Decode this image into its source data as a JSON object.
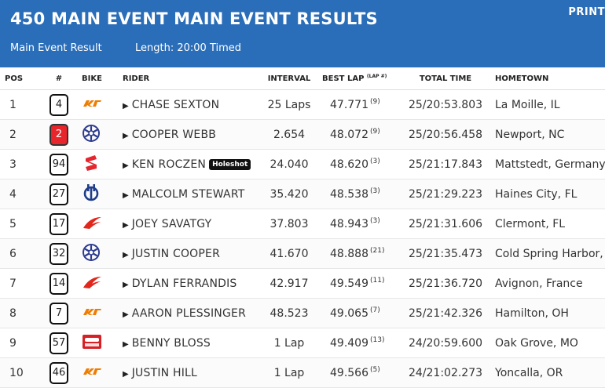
{
  "header": {
    "title": "450 MAIN EVENT MAIN EVENT RESULTS",
    "print_label": "PRINT",
    "subtitle_left": "Main Event Result",
    "subtitle_right": "Length: 20:00 Timed",
    "bg_color": "#2a6db8"
  },
  "columns": {
    "pos": "POS",
    "num": "#",
    "bike": "BIKE",
    "rider": "RIDER",
    "interval": "INTERVAL",
    "best_lap": "BEST LAP",
    "best_lap_sup": "(LAP #)",
    "total_time": "TOTAL TIME",
    "hometown": "HOMETOWN"
  },
  "rows": [
    {
      "pos": "1",
      "num": "4",
      "bike": "ktm",
      "bike_icon": "ktm-logo-icon",
      "rider": "CHASE SEXTON",
      "badge": "",
      "interval": "25 Laps",
      "best_lap": "47.771",
      "lap_no": "(9)",
      "total": "25/20:53.803",
      "hometown": "La Moille, IL"
    },
    {
      "pos": "2",
      "num": "2",
      "num_red": true,
      "bike": "yamaha",
      "bike_icon": "yamaha-logo-icon",
      "rider": "COOPER WEBB",
      "badge": "",
      "interval": "2.654",
      "best_lap": "48.072",
      "lap_no": "(9)",
      "total": "25/20:56.458",
      "hometown": "Newport, NC"
    },
    {
      "pos": "3",
      "num": "94",
      "bike": "suzuki",
      "bike_icon": "suzuki-logo-icon",
      "rider": "KEN ROCZEN",
      "badge": "Holeshot",
      "interval": "24.040",
      "best_lap": "48.620",
      "lap_no": "(3)",
      "total": "25/21:17.843",
      "hometown": "Mattstedt, Germany"
    },
    {
      "pos": "4",
      "num": "27",
      "bike": "husqvarna",
      "bike_icon": "husqvarna-logo-icon",
      "rider": "MALCOLM STEWART",
      "badge": "",
      "interval": "35.420",
      "best_lap": "48.538",
      "lap_no": "(3)",
      "total": "25/21:29.223",
      "hometown": "Haines City, FL"
    },
    {
      "pos": "5",
      "num": "17",
      "bike": "honda",
      "bike_icon": "honda-logo-icon",
      "rider": "JOEY SAVATGY",
      "badge": "",
      "interval": "37.803",
      "best_lap": "48.943",
      "lap_no": "(3)",
      "total": "25/21:31.606",
      "hometown": "Clermont, FL"
    },
    {
      "pos": "6",
      "num": "32",
      "bike": "yamaha",
      "bike_icon": "yamaha-logo-icon",
      "rider": "JUSTIN COOPER",
      "badge": "",
      "interval": "41.670",
      "best_lap": "48.888",
      "lap_no": "(21)",
      "total": "25/21:35.473",
      "hometown": "Cold Spring Harbor, NY"
    },
    {
      "pos": "7",
      "num": "14",
      "bike": "honda",
      "bike_icon": "honda-logo-icon",
      "rider": "DYLAN FERRANDIS",
      "badge": "",
      "interval": "42.917",
      "best_lap": "49.549",
      "lap_no": "(11)",
      "total": "25/21:36.720",
      "hometown": "Avignon, France"
    },
    {
      "pos": "8",
      "num": "7",
      "bike": "ktm",
      "bike_icon": "ktm-logo-icon",
      "rider": "AARON PLESSINGER",
      "badge": "",
      "interval": "48.523",
      "best_lap": "49.065",
      "lap_no": "(7)",
      "total": "25/21:42.326",
      "hometown": "Hamilton, OH"
    },
    {
      "pos": "9",
      "num": "57",
      "bike": "beta",
      "bike_icon": "beta-logo-icon",
      "rider": "BENNY BLOSS",
      "badge": "",
      "interval": "1 Lap",
      "best_lap": "49.409",
      "lap_no": "(13)",
      "total": "24/20:59.600",
      "hometown": "Oak Grove, MO"
    },
    {
      "pos": "10",
      "num": "46",
      "bike": "ktm",
      "bike_icon": "ktm-logo-icon",
      "rider": "JUSTIN HILL",
      "badge": "",
      "interval": "1 Lap",
      "best_lap": "49.566",
      "lap_no": "(5)",
      "total": "24/21:02.273",
      "hometown": "Yoncalla, OR"
    }
  ],
  "colors": {
    "ktm": "#f07c00",
    "yamaha": "#2b3a8f",
    "suzuki": "#e4262e",
    "husqvarna": "#1f3d8a",
    "honda": "#e1261c",
    "beta": "#d71f26"
  }
}
